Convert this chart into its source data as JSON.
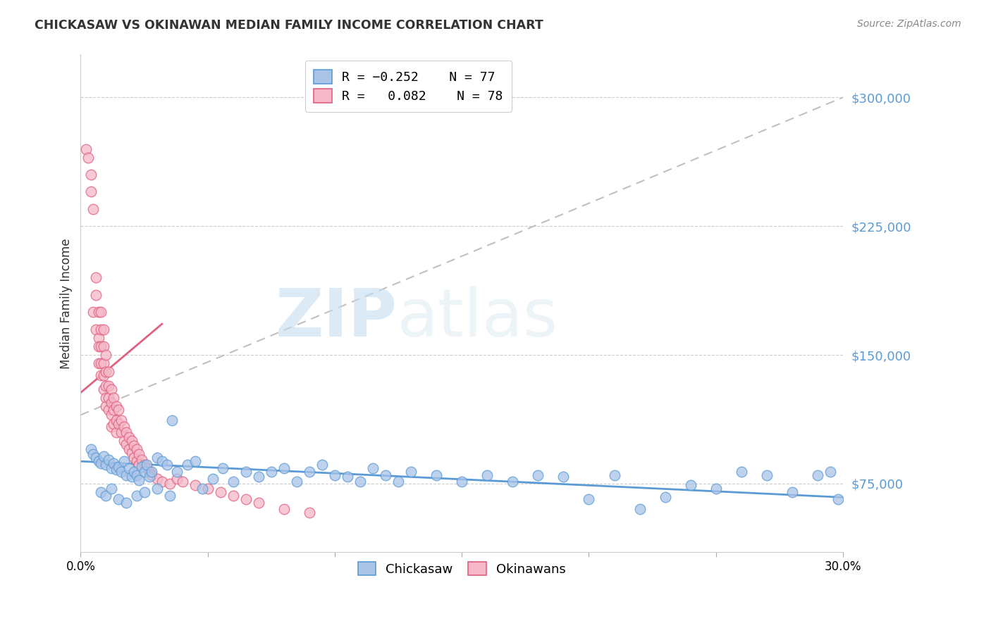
{
  "title": "CHICKASAW VS OKINAWAN MEDIAN FAMILY INCOME CORRELATION CHART",
  "source": "Source: ZipAtlas.com",
  "ylabel": "Median Family Income",
  "yticks": [
    75000,
    150000,
    225000,
    300000
  ],
  "ytick_labels": [
    "$75,000",
    "$150,000",
    "$225,000",
    "$300,000"
  ],
  "xmin": 0.0,
  "xmax": 0.3,
  "ymin": 35000,
  "ymax": 325000,
  "chickasaw_color": "#aac4e8",
  "okinawan_color": "#f5b8c8",
  "chickasaw_line_color": "#5b9bd5",
  "okinawan_line_color": "#e06080",
  "dashed_line_color": "#c0c0c0",
  "chickasaw_scatter_x": [
    0.004,
    0.005,
    0.006,
    0.007,
    0.008,
    0.009,
    0.01,
    0.011,
    0.012,
    0.013,
    0.014,
    0.015,
    0.016,
    0.017,
    0.018,
    0.019,
    0.02,
    0.021,
    0.022,
    0.023,
    0.024,
    0.025,
    0.026,
    0.027,
    0.028,
    0.03,
    0.032,
    0.034,
    0.036,
    0.038,
    0.042,
    0.045,
    0.048,
    0.052,
    0.056,
    0.06,
    0.065,
    0.07,
    0.075,
    0.08,
    0.085,
    0.09,
    0.095,
    0.1,
    0.105,
    0.11,
    0.115,
    0.12,
    0.125,
    0.13,
    0.14,
    0.15,
    0.16,
    0.17,
    0.18,
    0.19,
    0.2,
    0.21,
    0.22,
    0.23,
    0.24,
    0.25,
    0.26,
    0.27,
    0.28,
    0.29,
    0.295,
    0.298,
    0.008,
    0.01,
    0.012,
    0.015,
    0.018,
    0.022,
    0.025,
    0.03,
    0.035
  ],
  "chickasaw_scatter_y": [
    95000,
    92000,
    90000,
    88000,
    87000,
    91000,
    86000,
    89000,
    84000,
    87000,
    83000,
    85000,
    82000,
    88000,
    80000,
    84000,
    79000,
    82000,
    80000,
    77000,
    85000,
    82000,
    86000,
    79000,
    82000,
    90000,
    88000,
    86000,
    112000,
    82000,
    86000,
    88000,
    72000,
    78000,
    84000,
    76000,
    82000,
    79000,
    82000,
    84000,
    76000,
    82000,
    86000,
    80000,
    79000,
    76000,
    84000,
    80000,
    76000,
    82000,
    80000,
    76000,
    80000,
    76000,
    80000,
    79000,
    66000,
    80000,
    60000,
    67000,
    74000,
    72000,
    82000,
    80000,
    70000,
    80000,
    82000,
    66000,
    70000,
    68000,
    72000,
    66000,
    64000,
    68000,
    70000,
    72000,
    68000
  ],
  "okinawan_scatter_x": [
    0.002,
    0.003,
    0.004,
    0.004,
    0.005,
    0.005,
    0.006,
    0.006,
    0.006,
    0.007,
    0.007,
    0.007,
    0.007,
    0.008,
    0.008,
    0.008,
    0.008,
    0.008,
    0.009,
    0.009,
    0.009,
    0.009,
    0.009,
    0.01,
    0.01,
    0.01,
    0.01,
    0.01,
    0.011,
    0.011,
    0.011,
    0.011,
    0.012,
    0.012,
    0.012,
    0.012,
    0.013,
    0.013,
    0.013,
    0.014,
    0.014,
    0.014,
    0.015,
    0.015,
    0.016,
    0.016,
    0.017,
    0.017,
    0.018,
    0.018,
    0.019,
    0.019,
    0.02,
    0.02,
    0.021,
    0.021,
    0.022,
    0.022,
    0.023,
    0.023,
    0.024,
    0.025,
    0.026,
    0.027,
    0.028,
    0.03,
    0.032,
    0.035,
    0.038,
    0.04,
    0.045,
    0.05,
    0.055,
    0.06,
    0.065,
    0.07,
    0.08,
    0.09
  ],
  "okinawan_scatter_y": [
    270000,
    265000,
    255000,
    245000,
    235000,
    175000,
    185000,
    195000,
    165000,
    175000,
    160000,
    155000,
    145000,
    175000,
    165000,
    155000,
    145000,
    138000,
    165000,
    155000,
    145000,
    138000,
    130000,
    150000,
    140000,
    132000,
    125000,
    120000,
    140000,
    132000,
    125000,
    118000,
    130000,
    122000,
    115000,
    108000,
    125000,
    118000,
    110000,
    120000,
    112000,
    105000,
    118000,
    110000,
    112000,
    105000,
    108000,
    100000,
    105000,
    98000,
    102000,
    95000,
    100000,
    93000,
    97000,
    90000,
    95000,
    88000,
    92000,
    86000,
    89000,
    86000,
    84000,
    82000,
    80000,
    78000,
    76000,
    75000,
    78000,
    76000,
    74000,
    72000,
    70000,
    68000,
    66000,
    64000,
    60000,
    58000
  ],
  "chickasaw_trendline_x": [
    0.0,
    0.3
  ],
  "chickasaw_trendline_y": [
    88000,
    67000
  ],
  "okinawan_trendline_x": [
    0.0,
    0.3
  ],
  "okinawan_trendline_y": [
    115000,
    300000
  ]
}
